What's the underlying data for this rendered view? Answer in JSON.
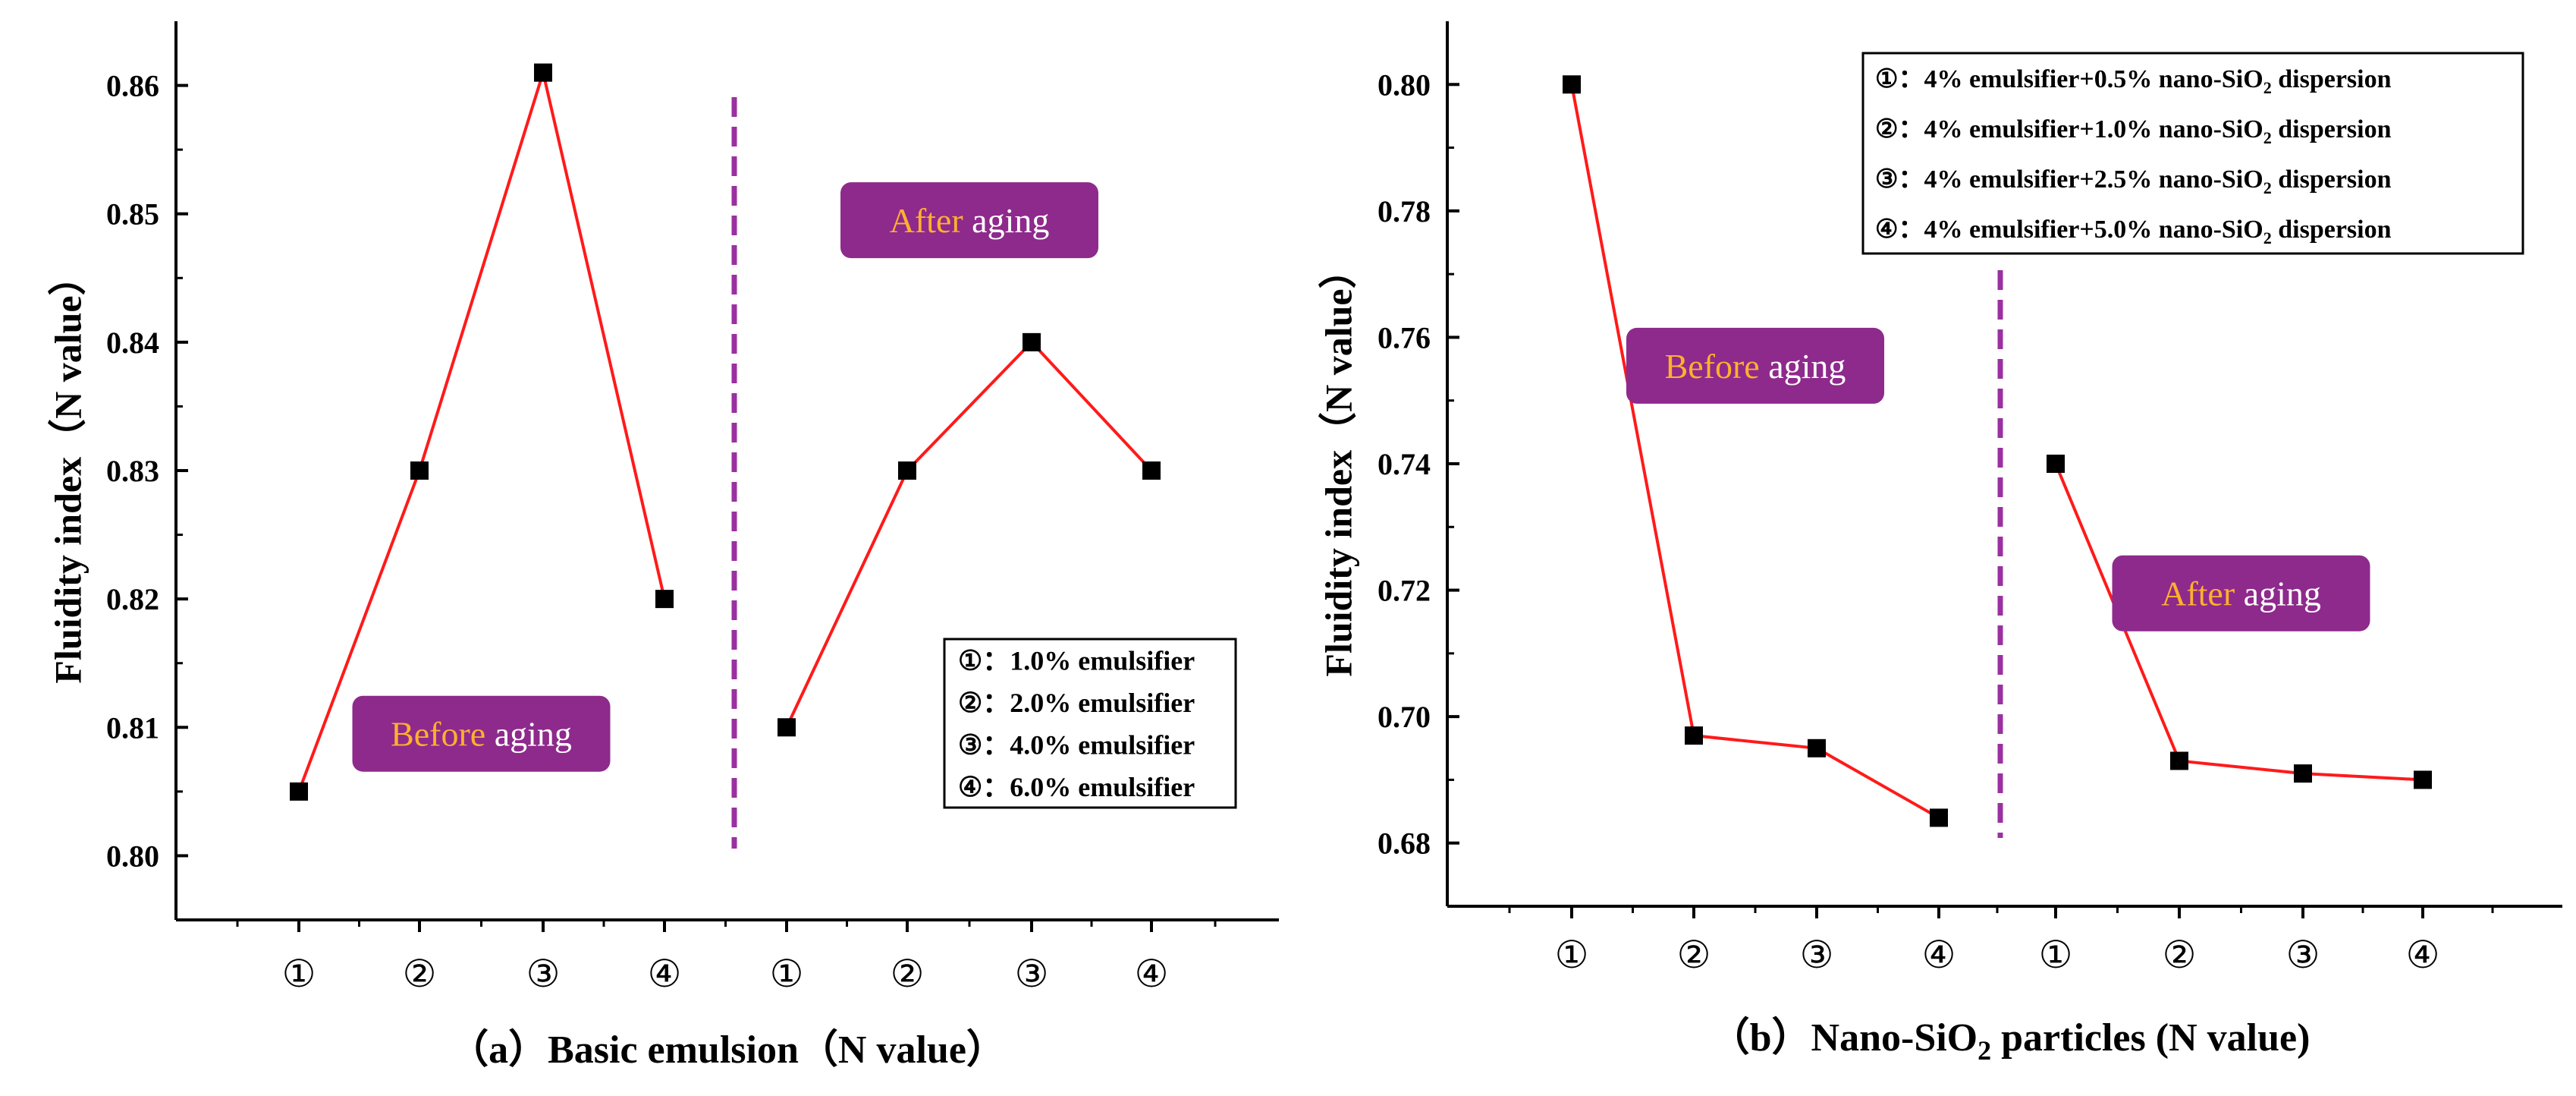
{
  "chart_data": [
    {
      "id": "a",
      "type": "line",
      "caption": "（a）Basic emulsion（N value）",
      "ylabel": "Fluidity index（N value）",
      "xlabel": "",
      "ylim": [
        0.795,
        0.865
      ],
      "yticks": [
        0.8,
        0.81,
        0.82,
        0.83,
        0.84,
        0.85,
        0.86
      ],
      "ytick_labels": [
        "0.80",
        "0.81",
        "0.82",
        "0.83",
        "0.84",
        "0.85",
        "0.86"
      ],
      "categories": [
        "①",
        "②",
        "③",
        "④",
        "①",
        "②",
        "③",
        "④"
      ],
      "series": [
        {
          "name": "Before aging",
          "x": [
            1,
            2,
            3,
            4
          ],
          "values": [
            0.805,
            0.83,
            0.861,
            0.82
          ]
        },
        {
          "name": "After aging",
          "x": [
            5,
            6,
            7,
            8
          ],
          "values": [
            0.81,
            0.83,
            0.84,
            0.83
          ]
        }
      ],
      "divider_x": 4.5,
      "annotations": [
        {
          "text_a": "Before",
          "text_b": " aging",
          "x": 2.5,
          "y": 0.8095
        },
        {
          "text_a": "After",
          "text_b": " aging",
          "x": 6.5,
          "y": 0.8495
        }
      ],
      "legend": {
        "placement": "lower-right",
        "items": [
          "①：1.0% emulsifier",
          "②：2.0% emulsifier",
          "③：4.0% emulsifier",
          "④：6.0% emulsifier"
        ]
      }
    },
    {
      "id": "b",
      "type": "line",
      "caption_pre": "（b）Nano-SiO",
      "caption_sub": "2",
      "caption_post": " particles (N value)",
      "ylabel": "Fluidity index（N value）",
      "xlabel": "",
      "ylim": [
        0.67,
        0.81
      ],
      "yticks": [
        0.68,
        0.7,
        0.72,
        0.74,
        0.76,
        0.78,
        0.8
      ],
      "ytick_labels": [
        "0.68",
        "0.70",
        "0.72",
        "0.74",
        "0.76",
        "0.78",
        "0.80"
      ],
      "categories": [
        "①",
        "②",
        "③",
        "④",
        "①",
        "②",
        "③",
        "④"
      ],
      "series": [
        {
          "name": "Before aging",
          "x": [
            1,
            2,
            3,
            4
          ],
          "values": [
            0.8,
            0.697,
            0.695,
            0.684
          ]
        },
        {
          "name": "After aging",
          "x": [
            5,
            6,
            7,
            8
          ],
          "values": [
            0.74,
            0.693,
            0.691,
            0.69
          ]
        }
      ],
      "divider_x": 4.5,
      "annotations": [
        {
          "text_a": "Before",
          "text_b": " aging",
          "x": 2.5,
          "y": 0.7555
        },
        {
          "text_a": "After",
          "text_b": " aging",
          "x": 6.5,
          "y": 0.7195
        }
      ],
      "legend": {
        "placement": "top-right",
        "items": [
          {
            "pre": "①：4% emulsifier+0.5% nano-SiO",
            "sub": "2",
            "post": " dispersion"
          },
          {
            "pre": "②：4% emulsifier+1.0% nano-SiO",
            "sub": "2",
            "post": " dispersion"
          },
          {
            "pre": "③：4% emulsifier+2.5% nano-SiO",
            "sub": "2",
            "post": " dispersion"
          },
          {
            "pre": "④：4% emulsifier+5.0% nano-SiO",
            "sub": "2",
            "post": " dispersion"
          }
        ]
      }
    }
  ],
  "colors": {
    "line": "#ff1a1a",
    "marker": "#000000",
    "divider": "#9b30a0",
    "label_bg": "#8e2a8c",
    "label_highlight": "#ffb02e",
    "label_text": "#ffffff"
  }
}
